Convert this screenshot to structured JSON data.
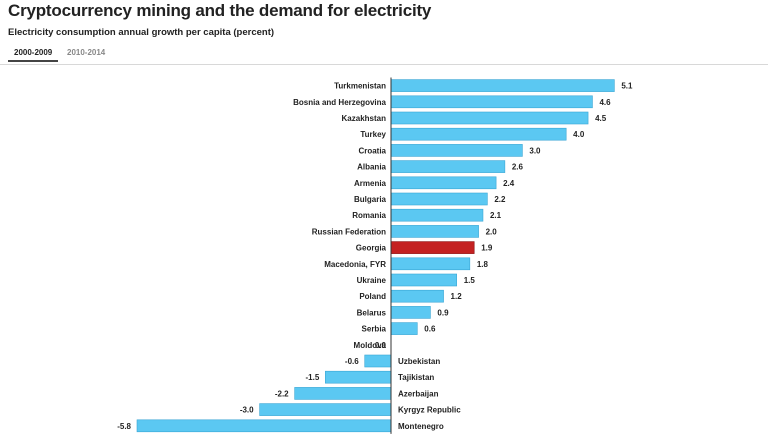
{
  "title": "Cryptocurrency mining and the demand for electricity",
  "subtitle": "Electricity consumption annual growth per capita (percent)",
  "tabs": [
    {
      "label": "2000-2009",
      "active": true
    },
    {
      "label": "2010-2014",
      "active": false
    }
  ],
  "colors": {
    "bar": "#5bc8f2",
    "highlight": "#c42121",
    "axis": "#333333"
  },
  "chart_data": {
    "type": "bar",
    "orientation": "horizontal",
    "highlight": "Georgia",
    "categories": [
      "Turkmenistan",
      "Bosnia and Herzegovina",
      "Kazakhstan",
      "Turkey",
      "Croatia",
      "Albania",
      "Armenia",
      "Bulgaria",
      "Romania",
      "Russian Federation",
      "Georgia",
      "Macedonia, FYR",
      "Ukraine",
      "Poland",
      "Belarus",
      "Serbia",
      "Moldova",
      "Uzbekistan",
      "Tajikistan",
      "Azerbaijan",
      "Kyrgyz Republic",
      "Montenegro"
    ],
    "values": [
      5.1,
      4.6,
      4.5,
      4.0,
      3.0,
      2.6,
      2.4,
      2.2,
      2.1,
      2.0,
      1.9,
      1.8,
      1.5,
      1.2,
      0.9,
      0.6,
      0.0,
      -0.6,
      -1.5,
      -2.2,
      -3.0,
      -5.8
    ],
    "value_labels": [
      "5.1",
      "4.6",
      "4.5",
      "4.0",
      "3.0",
      "2.6",
      "2.4",
      "2.2",
      "2.1",
      "2.0",
      "1.9",
      "1.8",
      "1.5",
      "1.2",
      "0.9",
      "0.6",
      "0.0",
      "-0.6",
      "-1.5",
      "-2.2",
      "-3.0",
      "-5.8"
    ],
    "xlim": [
      -5.8,
      5.1
    ],
    "title": "Cryptocurrency mining and the demand for electricity",
    "subtitle": "Electricity consumption annual growth per capita (percent)"
  }
}
